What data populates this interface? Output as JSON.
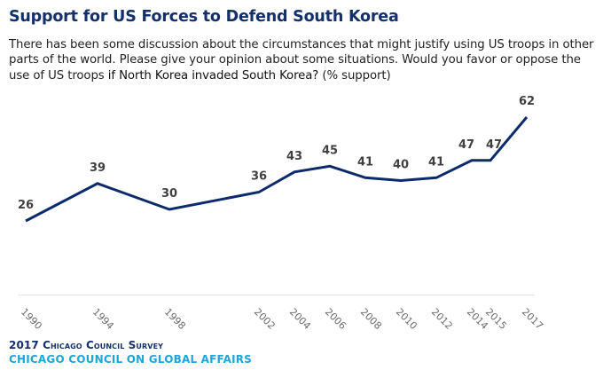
{
  "chart_data": {
    "type": "line",
    "title": "Support for US Forces to Defend South Korea",
    "subtitle_parts": [
      "There has been some discussion about the circumstances that might justify using US troops in other parts of the world. Please give your opinion about some situations. Would you favor or oppose the use of US troops ",
      "if North Korea invaded South Korea?",
      " (% support)"
    ],
    "xlabel": "",
    "ylabel": "",
    "categories": [
      "1990",
      "1994",
      "1998",
      "2002",
      "2004",
      "2006",
      "2008",
      "2010",
      "2012",
      "2014",
      "2015",
      "2017"
    ],
    "series": [
      {
        "name": "Support",
        "values": [
          26,
          39,
          30,
          36,
          43,
          45,
          41,
          40,
          41,
          47,
          47,
          62
        ]
      }
    ],
    "ylim": [
      0,
      100
    ],
    "grid": false,
    "legend": "none",
    "colors": {
      "line": "#0d2b6b",
      "labels": "#404040",
      "axis": "#e6e6e6",
      "ticks": "#6b6b6b"
    }
  },
  "footer": {
    "survey": "2017 Chicago Council Survey",
    "org": "CHICAGO COUNCIL ON GLOBAL AFFAIRS"
  }
}
